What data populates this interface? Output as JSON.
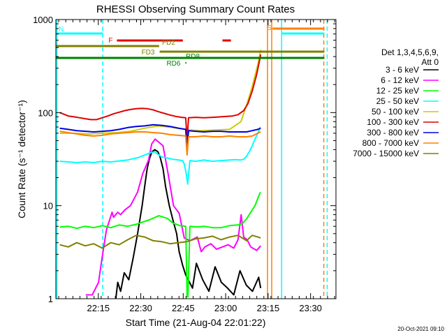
{
  "chart_data": {
    "type": "line",
    "title": "RHESSI Observing Summary Count Rates",
    "xlabel": "Start Time (21-Aug-04 22:01:22)",
    "ylabel": "Count Rate (s⁻¹ detector⁻¹)",
    "y_scale": "log",
    "ylim": [
      1,
      1000
    ],
    "xlim_minutes": [
      -1.37,
      97.6
    ],
    "y_ticks": [
      {
        "value": 1,
        "label": "1"
      },
      {
        "value": 10,
        "label": "10"
      },
      {
        "value": 100,
        "label": "100"
      },
      {
        "value": 1000,
        "label": "1000"
      }
    ],
    "x_ticks": [
      {
        "value": 13.63,
        "label": "22:15"
      },
      {
        "value": 28.63,
        "label": "22:30"
      },
      {
        "value": 43.63,
        "label": "22:45"
      },
      {
        "value": 58.63,
        "label": "23:00"
      },
      {
        "value": 73.63,
        "label": "23:15"
      },
      {
        "value": 88.63,
        "label": "23:30"
      }
    ],
    "legend": {
      "title_line1": "Det 1,3,4,5,6,9,",
      "title_line2": "Att 0",
      "placement": "right"
    },
    "series": [
      {
        "name": "3 - 6 keV",
        "color": "#000000",
        "x": [
          19.8,
          20.5,
          21.5,
          22.8,
          24.4,
          26,
          27.5,
          29.1,
          30,
          30.9,
          31.7,
          32.6,
          33.6,
          34.7,
          35.5,
          36.5,
          37.4,
          38.7,
          40,
          41.3,
          42.2,
          43.4,
          44.5,
          46.9,
          48.3,
          50.5,
          52.7,
          54.9,
          57.1,
          59.3,
          61.5,
          63.7,
          65.9,
          68.1,
          70.3,
          71
        ],
        "y": [
          1,
          1.5,
          1.2,
          1.9,
          1.6,
          2.8,
          5,
          10,
          16,
          25,
          32,
          38,
          40,
          38,
          33,
          25,
          16,
          10,
          7,
          5,
          3.2,
          2.3,
          1.8,
          1.3,
          2.4,
          1.6,
          1.2,
          2.2,
          1.5,
          1.3,
          1.1,
          2,
          1.4,
          1.2,
          1.7,
          1.3
        ]
      },
      {
        "name": "6 - 12 keV",
        "color": "#ff00ff",
        "x": [
          9.2,
          11.5,
          13.7,
          15,
          16.5,
          18.5,
          19,
          20.5,
          21.5,
          23,
          25,
          27.5,
          29.3,
          31.4,
          32.5,
          33.7,
          35,
          36.5,
          38.3,
          40.2,
          42.2,
          44,
          46,
          48.6,
          50,
          51.3,
          53.4,
          55.4,
          57.5,
          59.5,
          61.5,
          63,
          64.1,
          65,
          66.2,
          67.5,
          69.6,
          71
        ],
        "y": [
          1.1,
          1.1,
          1.5,
          2.8,
          5.5,
          8.5,
          7.5,
          8.5,
          8,
          9,
          10,
          14,
          22,
          31,
          46,
          52,
          48,
          44,
          22,
          10,
          8.3,
          4.5,
          4.2,
          4.6,
          3.2,
          3.6,
          3.9,
          3.4,
          3.6,
          3.8,
          3.5,
          4.3,
          8,
          4.6,
          4.3,
          3.6,
          3.3,
          3.7
        ]
      },
      {
        "name": "12 - 25 keV",
        "color": "#00ff00",
        "x": [
          0,
          3,
          6,
          9,
          12,
          15,
          18,
          21,
          24,
          27,
          29.5,
          32,
          35,
          38,
          40,
          42.5,
          44.5,
          45,
          45.3,
          46,
          48.5,
          51,
          54,
          57,
          60,
          63,
          64.5,
          66,
          67.5,
          69,
          70,
          70.9
        ],
        "y": [
          5.9,
          6,
          5.7,
          6,
          5.8,
          6.1,
          5.8,
          6.2,
          6,
          6.3,
          6.7,
          7.1,
          7.8,
          7.3,
          6.5,
          6.1,
          6,
          1.05,
          1.05,
          6,
          5.9,
          6,
          5.8,
          5.8,
          6.1,
          6.2,
          6.4,
          7.2,
          8.5,
          10,
          12,
          14
        ]
      },
      {
        "name": "25 - 50 keV",
        "color": "#00ffff",
        "x": [
          0,
          3,
          6,
          9,
          12,
          15,
          18,
          20,
          22,
          24,
          26,
          28,
          30,
          32,
          33.6,
          34.5,
          36,
          38,
          40,
          42,
          43.4,
          44,
          44.7,
          45.2,
          46,
          48,
          51,
          54,
          57,
          60,
          62,
          64,
          65,
          66,
          67,
          68,
          69,
          70,
          70.9
        ],
        "y": [
          30,
          29.5,
          29,
          29.5,
          29,
          30,
          29.5,
          30,
          30.5,
          31,
          32,
          33,
          35,
          37,
          38,
          36,
          33.5,
          32.5,
          31.5,
          31,
          30.5,
          28,
          22,
          17,
          30.5,
          30,
          31,
          30,
          30.5,
          31,
          31.2,
          31,
          31.5,
          34,
          38,
          44,
          52,
          60,
          70
        ]
      },
      {
        "name": "50 - 100 keV",
        "color": "#cccc00",
        "x": [
          0,
          5,
          10,
          15,
          20,
          25,
          30,
          35,
          40,
          44.5,
          45,
          45.5,
          50,
          55,
          60,
          64,
          66,
          68,
          70,
          71
        ],
        "y": [
          60,
          60,
          59,
          60,
          61,
          63,
          68,
          72,
          69,
          66,
          40,
          65,
          64,
          65,
          66,
          80,
          120,
          190,
          330,
          470
        ]
      },
      {
        "name": "100 - 300 keV",
        "color": "#e00000",
        "x": [
          0,
          1.5,
          3,
          5,
          7,
          9,
          11,
          13,
          15,
          17,
          19,
          21,
          23,
          25,
          27,
          29,
          31,
          33,
          35,
          37,
          39,
          41,
          43,
          44.5,
          45,
          45.5,
          48,
          51,
          54,
          57,
          59,
          61,
          63,
          65,
          66.5,
          68,
          69.5,
          70.5,
          71
        ],
        "y": [
          100,
          96,
          92,
          90,
          88,
          86,
          84,
          84,
          88,
          92,
          97,
          101,
          105,
          108,
          110,
          111,
          110,
          107,
          102,
          98,
          94,
          91,
          89,
          88,
          50,
          88,
          89,
          88,
          89,
          90,
          91,
          92,
          95,
          105,
          125,
          170,
          250,
          350,
          420
        ]
      },
      {
        "name": "300 - 800 keV",
        "color": "#0000e0",
        "x": [
          0,
          3,
          6,
          9,
          12,
          15,
          18,
          21,
          24,
          27,
          30,
          33,
          36,
          39,
          42,
          44.5,
          45,
          45.5,
          48,
          51,
          54,
          57,
          60,
          63,
          66,
          68,
          70,
          71
        ],
        "y": [
          68,
          66,
          64,
          63,
          62,
          63,
          64,
          66,
          69,
          71,
          72,
          74,
          73,
          71,
          68,
          66,
          40,
          64,
          63,
          62,
          63,
          63,
          62,
          62,
          62,
          64,
          66,
          68
        ]
      },
      {
        "name": "800 - 7000 keV",
        "color": "#ff8000",
        "x": [
          0,
          3,
          6,
          9,
          12,
          15,
          18,
          21,
          24,
          27,
          30,
          33,
          36,
          39,
          42,
          44.5,
          45,
          45.5,
          48,
          51,
          54,
          57,
          60,
          63,
          66,
          68,
          70,
          71
        ],
        "y": [
          63,
          61,
          59,
          57,
          56,
          57,
          59,
          60,
          61,
          62,
          62,
          61,
          60,
          58,
          57,
          56,
          35,
          55,
          55,
          56,
          55,
          55,
          56,
          55,
          55,
          56,
          60,
          62
        ]
      },
      {
        "name": "7000 - 15000 keV",
        "color": "#808000",
        "x": [
          0,
          3,
          6,
          9,
          12,
          15,
          18,
          21,
          24,
          27,
          30,
          33,
          36,
          39,
          42,
          45,
          48,
          51,
          54,
          57,
          60,
          63,
          66,
          68,
          70,
          71
        ],
        "y": [
          3.8,
          3.6,
          4,
          3.7,
          3.9,
          3.5,
          4,
          3.8,
          4.3,
          4.8,
          4.6,
          4.2,
          4.1,
          3.9,
          4,
          4.1,
          4.4,
          4.5,
          4.7,
          4.3,
          4.6,
          4.8,
          4.2,
          4.8,
          4.6,
          4.5
        ]
      }
    ],
    "flags": [
      {
        "label": "N",
        "color": "#00ffff",
        "segments": [
          [
            -1.37,
            15.2
          ],
          [
            78.4,
            93.5
          ]
        ]
      },
      {
        "label": "F",
        "color": "#e00000",
        "segments": [
          [
            20.2,
            43.5
          ],
          [
            57.5,
            60.5
          ]
        ]
      },
      {
        "label": "S",
        "color": "#ff8000",
        "segments": [
          [
            75.2,
            93.5
          ]
        ]
      },
      {
        "label": "FD2",
        "color": "#808000",
        "segments": [
          [
            -1.37,
            35.1
          ]
        ]
      },
      {
        "label": "FD3",
        "color": "#808000",
        "segments": [
          [
            35.3,
            93.5
          ]
        ]
      },
      {
        "label": "RD8",
        "color": "#008000",
        "segments": [
          [
            -1.37,
            93.5
          ]
        ]
      },
      {
        "label": "RD6",
        "color": "#008000",
        "segments": [
          [
            44.4,
            44.8
          ]
        ]
      }
    ],
    "vertical_markers": [
      {
        "x": 15.2,
        "color": "#00ffff",
        "style": "dashed"
      },
      {
        "x": -1.0,
        "color": "#00ffff",
        "style": "solid"
      },
      {
        "x": 73.4,
        "color": "#ff8000",
        "style": "solid"
      },
      {
        "x": 74.9,
        "color": "#ff8000",
        "style": "solid"
      },
      {
        "x": 78.4,
        "color": "#00ffff",
        "style": "solid"
      },
      {
        "x": 93.3,
        "color": "#ff8000",
        "style": "dashed"
      },
      {
        "x": 94.5,
        "color": "#00ffff",
        "style": "dashed"
      }
    ]
  },
  "footer": {
    "date_stamp": "20-Oct-2021 09:10"
  }
}
